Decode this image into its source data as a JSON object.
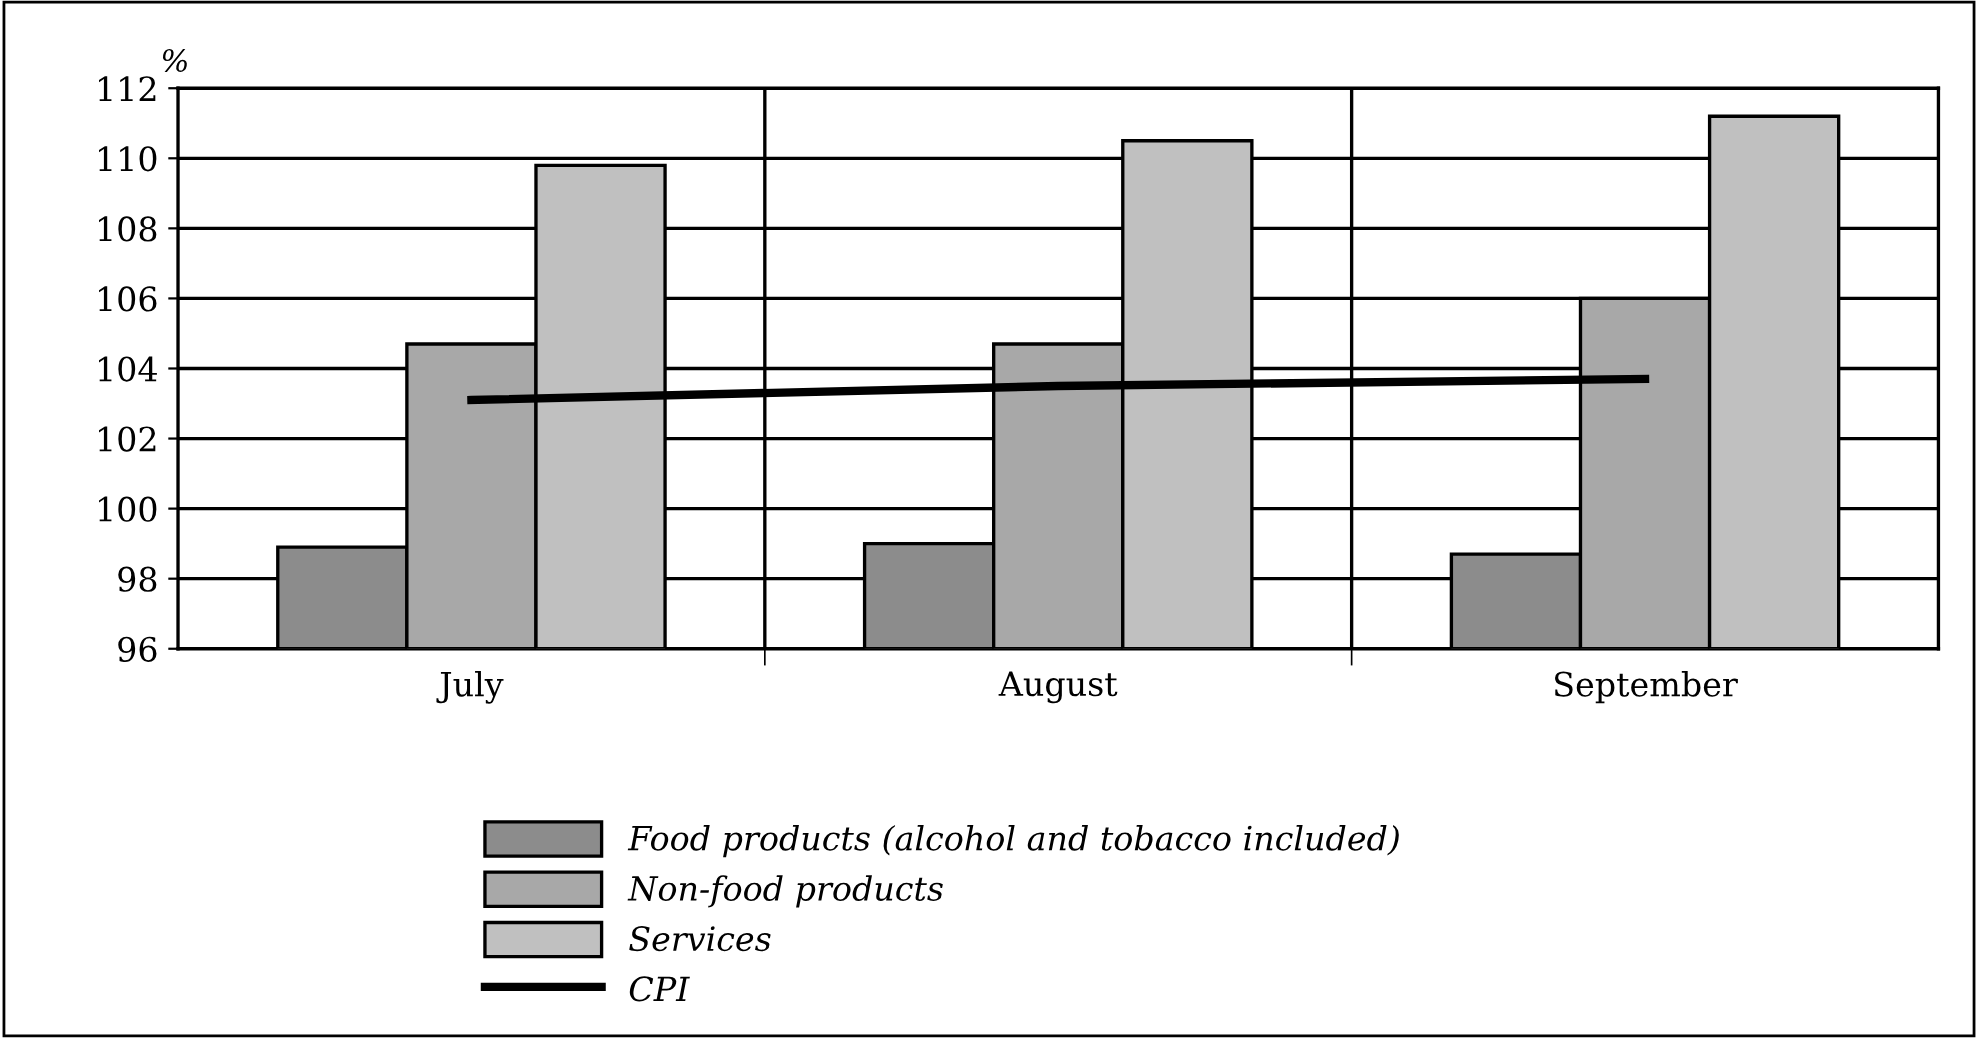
{
  "chart_data": {
    "type": "bar",
    "ylabel": "%",
    "categories": [
      "July",
      "August",
      "September"
    ],
    "series": [
      {
        "name": "Food products (alcohol and tobacco included)",
        "color": "#8c8c8c",
        "values": [
          98.9,
          99.0,
          98.7
        ]
      },
      {
        "name": "Non-food products",
        "color": "#a8a8a8",
        "values": [
          104.7,
          104.7,
          106.0
        ]
      },
      {
        "name": "Services",
        "color": "#c0c0c0",
        "values": [
          109.8,
          110.5,
          111.2
        ]
      },
      {
        "name": "CPI",
        "type": "line",
        "color": "#000000",
        "values": [
          103.1,
          103.5,
          103.7
        ]
      }
    ],
    "ylim": [
      96,
      112
    ],
    "yticks": [
      96,
      98,
      100,
      102,
      104,
      106,
      108,
      110,
      112
    ],
    "grid": true,
    "legend": "bottom",
    "marker": "none",
    "line_style": "solid"
  }
}
